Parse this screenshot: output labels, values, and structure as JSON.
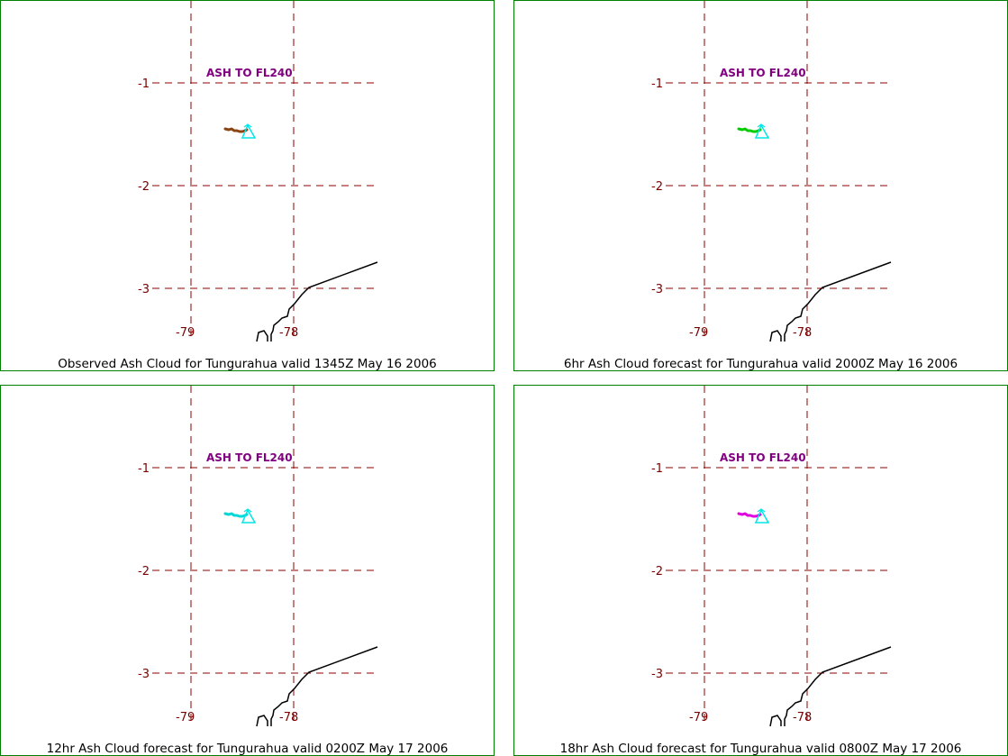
{
  "map": {
    "lat_labels": [
      "-1",
      "-2",
      "-3"
    ],
    "lon_labels": [
      "-79",
      "-78"
    ],
    "ash_label": "ASH TO FL240",
    "gridline_color": "#8b0000",
    "coastline_color": "#000000",
    "volcano_marker_color": "#00e5e5",
    "panel_border_color": "#008000"
  },
  "panels": [
    {
      "caption": "Observed Ash Cloud for Tungurahua valid 1345Z May 16 2006",
      "plume_color": "#8b4513"
    },
    {
      "caption": "6hr Ash Cloud forecast for Tungurahua valid 2000Z May 16 2006",
      "plume_color": "#00cc00"
    },
    {
      "caption": "12hr Ash Cloud forecast for Tungurahua valid 0200Z May 17 2006",
      "plume_color": "#00d8d8"
    },
    {
      "caption": "18hr Ash Cloud forecast for Tungurahua valid 0800Z May 17 2006",
      "plume_color": "#e000e0"
    }
  ]
}
